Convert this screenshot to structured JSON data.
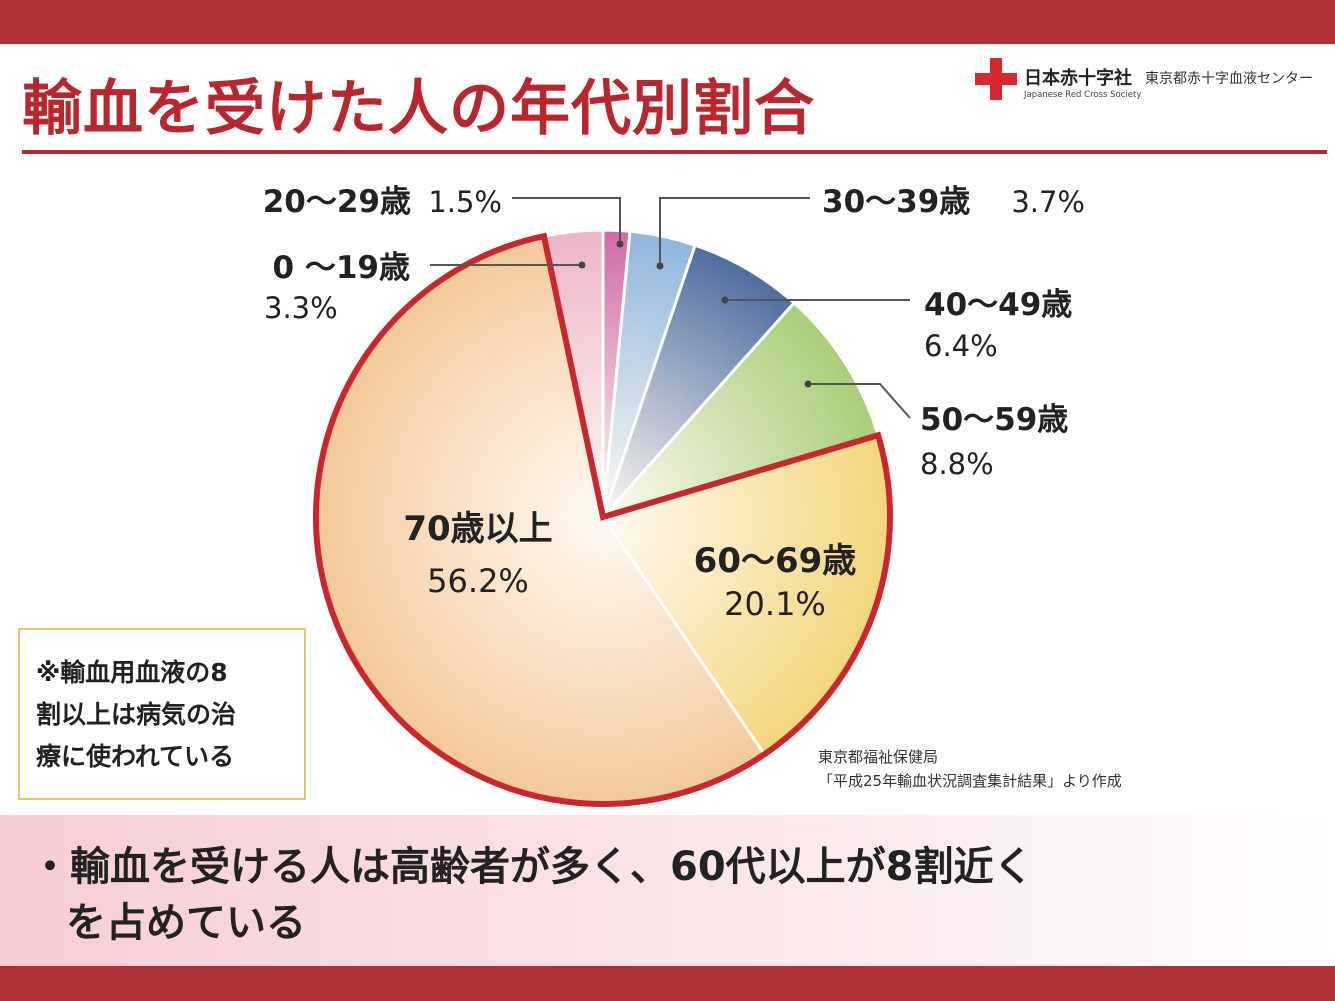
{
  "title": "輸血を受けた人の年代別割合",
  "logo": {
    "jp": "日本赤十字社",
    "en": "Japanese Red Cross Society",
    "center": "東京都赤十字血液センター"
  },
  "colors": {
    "brand_red": "#b03236",
    "title_red": "#b8272d",
    "highlight_border": "#c8282d"
  },
  "chart_data": {
    "type": "pie",
    "title": "輸血を受けた人の年代別割合",
    "unit": "%",
    "start_angle_deg": 0,
    "direction": "clockwise",
    "slices": [
      {
        "label": "20〜29歳",
        "value": 1.5,
        "display": "1.5%",
        "color": "#cf6aa6"
      },
      {
        "label": "30〜39歳",
        "value": 3.7,
        "display": "3.7%",
        "color": "#8fb6dc"
      },
      {
        "label": "40〜49歳",
        "value": 6.4,
        "display": "6.4%",
        "color": "#4e6d9f"
      },
      {
        "label": "50〜59歳",
        "value": 8.8,
        "display": "8.8%",
        "color": "#a9cd78"
      },
      {
        "label": "60〜69歳",
        "value": 20.1,
        "display": "20.1%",
        "color": "#f3d67c",
        "highlighted": true
      },
      {
        "label": "70歳以上",
        "value": 56.2,
        "display": "56.2%",
        "color": "#f4c99a",
        "highlighted": true
      },
      {
        "label": "0 〜19歳",
        "value": 3.3,
        "display": "3.3%",
        "color": "#ecb5c7"
      }
    ]
  },
  "note": {
    "lines": [
      "※輸血用血液の8",
      "割以上は病気の治",
      "療に使われている"
    ]
  },
  "source": {
    "line1": "東京都福祉保健局",
    "line2": "「平成25年輸血状況調査集計結果」より作成"
  },
  "summary": {
    "line1": "・輸血を受ける人は高齢者が多く、60代以上が8割近く",
    "line2": "を占めている"
  }
}
